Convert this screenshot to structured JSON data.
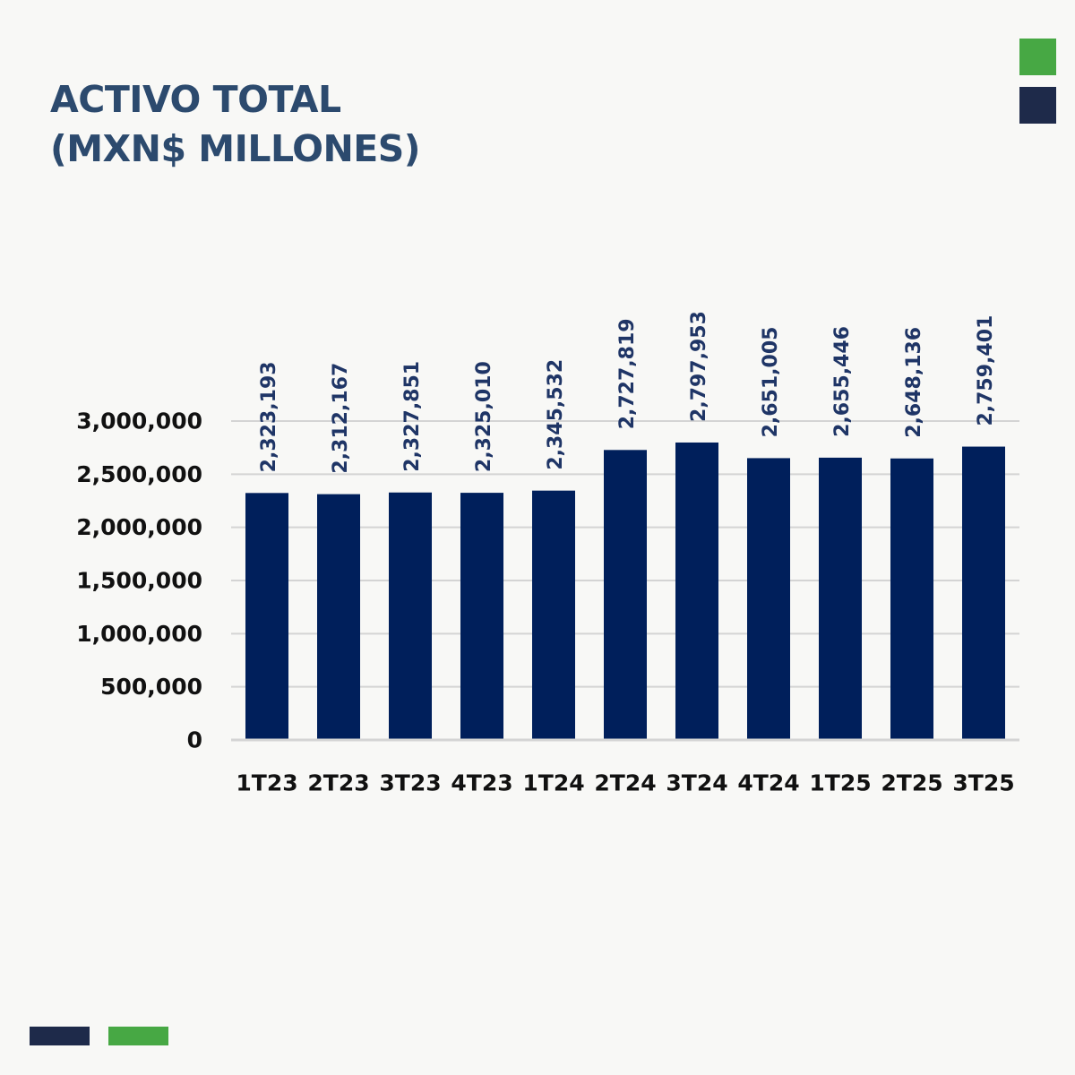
{
  "title": {
    "line1": "ACTIVO TOTAL",
    "line2": "(MXN$ MILLONES)"
  },
  "colors": {
    "background": "#f8f8f6",
    "title": "#2c4a6e",
    "bar": "#001f5b",
    "data_label": "#1f3566",
    "axis_text": "#111111",
    "grid": "#d4d4d4",
    "accent_green": "#47a844",
    "accent_navy": "#1e2a4a"
  },
  "chart_data": {
    "type": "bar",
    "title": "ACTIVO TOTAL (MXN$ MILLONES)",
    "xlabel": "",
    "ylabel": "",
    "categories": [
      "1T23",
      "2T23",
      "3T23",
      "4T23",
      "1T24",
      "2T24",
      "3T24",
      "4T24",
      "1T25",
      "2T25",
      "3T25"
    ],
    "values": [
      2323193,
      2312167,
      2327851,
      2325010,
      2345532,
      2727819,
      2797953,
      2651005,
      2655446,
      2648136,
      2759401
    ],
    "data_labels": [
      "2,323,193",
      "2,312,167",
      "2,327,851",
      "2,325,010",
      "2,345,532",
      "2,727,819",
      "2,797,953",
      "2,651,005",
      "2,655,446",
      "2,648,136",
      "2,759,401"
    ],
    "ylim": [
      0,
      3000000
    ],
    "yticks": [
      0,
      500000,
      1000000,
      1500000,
      2000000,
      2500000,
      3000000
    ],
    "ytick_labels": [
      "0",
      "500,000",
      "1,000,000",
      "1,500,000",
      "2,000,000",
      "2,500,000",
      "3,000,000"
    ],
    "grid": true,
    "legend": "none"
  }
}
